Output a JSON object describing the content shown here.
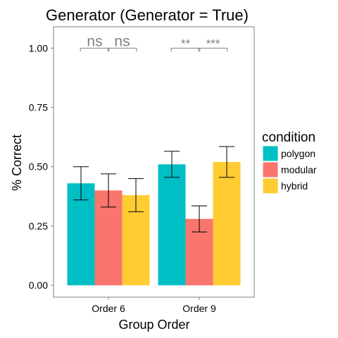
{
  "chart_data": {
    "type": "bar",
    "title": "Generator (Generator = True)",
    "xlabel": "Group Order",
    "ylabel": "% Correct",
    "categories": [
      "Order 6",
      "Order 9"
    ],
    "ylim": [
      -0.05,
      1.09
    ],
    "yticks": [
      0.0,
      0.25,
      0.5,
      0.75,
      1.0
    ],
    "ytick_labels": [
      "0.00",
      "0.25",
      "0.50",
      "0.75",
      "1.00"
    ],
    "grid": false,
    "legend": {
      "title": "condition",
      "position": "right"
    },
    "series": [
      {
        "name": "polygon",
        "color": "#00BFC4",
        "values": [
          0.43,
          0.51
        ],
        "err_low": [
          0.36,
          0.455
        ],
        "err_high": [
          0.5,
          0.565
        ]
      },
      {
        "name": "modular",
        "color": "#F8766D",
        "values": [
          0.4,
          0.28
        ],
        "err_low": [
          0.33,
          0.225
        ],
        "err_high": [
          0.47,
          0.335
        ]
      },
      {
        "name": "hybrid",
        "color": "#FFCC33",
        "values": [
          0.38,
          0.52
        ],
        "err_low": [
          0.31,
          0.455
        ],
        "err_high": [
          0.45,
          0.585
        ]
      }
    ],
    "annotations": [
      {
        "text": "ns",
        "category": "Order 6",
        "pair": [
          "polygon",
          "modular"
        ]
      },
      {
        "text": "ns",
        "category": "Order 6",
        "pair": [
          "modular",
          "hybrid"
        ]
      },
      {
        "text": "**",
        "category": "Order 9",
        "pair": [
          "polygon",
          "modular"
        ]
      },
      {
        "text": "***",
        "category": "Order 9",
        "pair": [
          "modular",
          "hybrid"
        ]
      }
    ]
  }
}
